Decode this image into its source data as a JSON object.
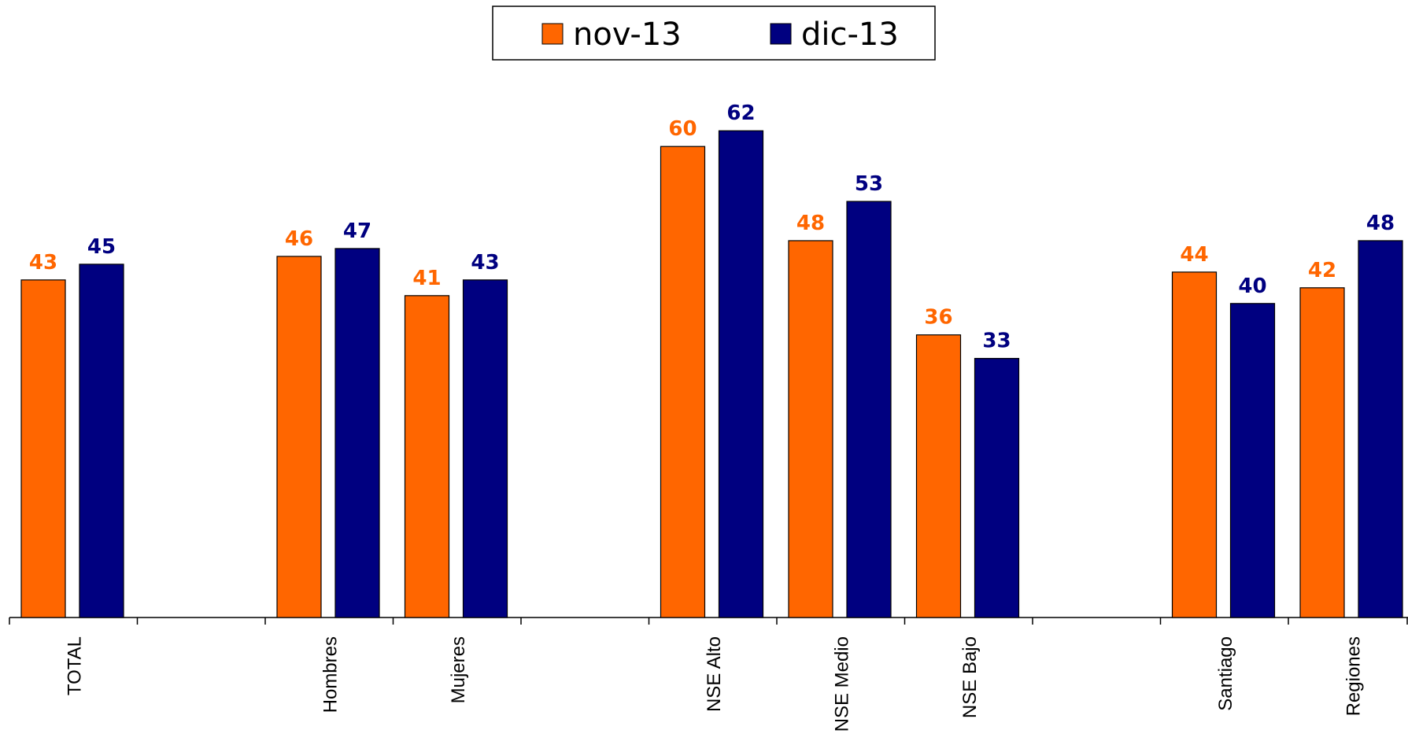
{
  "chart_data": {
    "type": "bar",
    "title": "",
    "xlabel": "",
    "ylabel": "",
    "ylim": [
      0,
      72
    ],
    "grid": false,
    "legend": "top-center",
    "categories": [
      "TOTAL",
      "",
      "Hombres",
      "Mujeres",
      "",
      "NSE Alto",
      "NSE Medio",
      "NSE Bajo",
      "",
      "Santiago",
      "Regiones"
    ],
    "series": [
      {
        "name": "nov-13",
        "color": "#FF6600",
        "values": [
          43,
          null,
          46,
          41,
          null,
          60,
          48,
          36,
          null,
          44,
          42
        ]
      },
      {
        "name": "dic-13",
        "color": "#000080",
        "values": [
          45,
          null,
          47,
          43,
          null,
          62,
          53,
          33,
          null,
          40,
          48
        ]
      }
    ]
  }
}
